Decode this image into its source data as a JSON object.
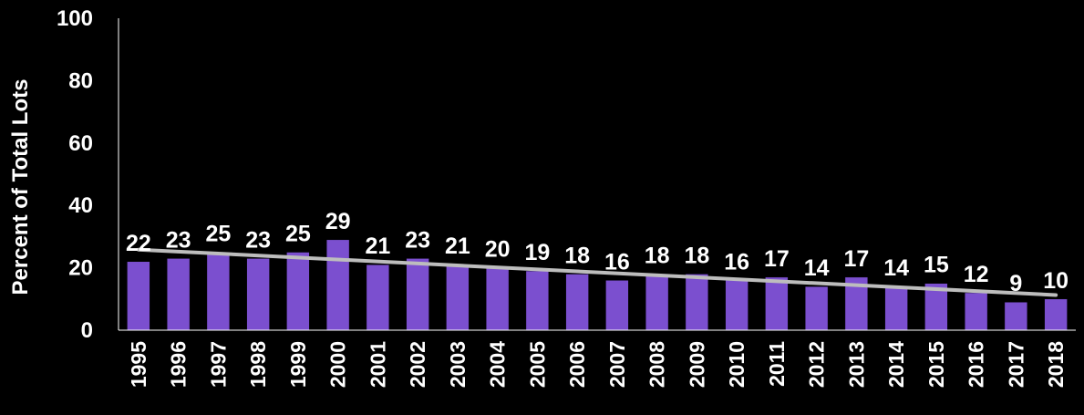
{
  "chart_data": {
    "type": "bar",
    "title": "",
    "xlabel": "",
    "ylabel": "Percent of Total Lots",
    "ylim": [
      0,
      100
    ],
    "yticks": [
      0,
      20,
      40,
      60,
      80,
      100
    ],
    "grid": false,
    "legend": "none",
    "trendline": "linear",
    "colors": {
      "bar": "#7B4FCF",
      "trendline": "#BDBDBD",
      "background": "#000000",
      "text": "#FFFFFF"
    },
    "categories": [
      "1995",
      "1996",
      "1997",
      "1998",
      "1999",
      "2000",
      "2001",
      "2002",
      "2003",
      "2004",
      "2005",
      "2006",
      "2007",
      "2008",
      "2009",
      "2010",
      "2011",
      "2012",
      "2013",
      "2014",
      "2015",
      "2016",
      "2017",
      "2018"
    ],
    "values": [
      22,
      23,
      25,
      23,
      25,
      29,
      21,
      23,
      21,
      20,
      19,
      18,
      16,
      18,
      18,
      16,
      17,
      14,
      17,
      14,
      15,
      12,
      9,
      10
    ]
  }
}
